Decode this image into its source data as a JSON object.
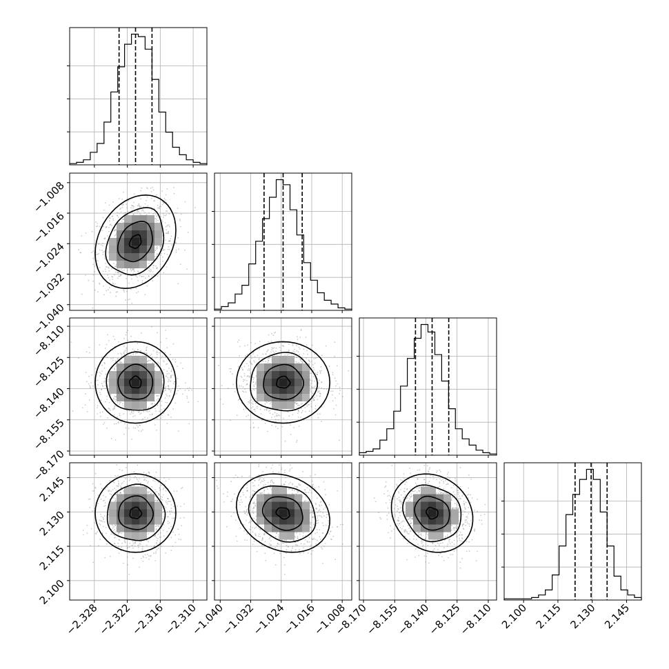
{
  "chart_data": {
    "type": "corner",
    "grid": true,
    "parameters": [
      {
        "mean": -2.3205,
        "sigma": 0.003,
        "range": [
          -2.3325,
          -2.3075
        ],
        "ticks": [
          -2.328,
          -2.322,
          -2.316,
          -2.31
        ],
        "tick_labels": [
          "−2.328",
          "−2.322",
          "−2.316",
          "−2.310"
        ],
        "quantiles": [
          -2.3235,
          -2.3205,
          -2.3175
        ]
      },
      {
        "mean": -1.0235,
        "sigma": 0.005,
        "range": [
          -1.0415,
          -1.0055
        ],
        "ticks": [
          -1.04,
          -1.032,
          -1.024,
          -1.016,
          -1.008
        ],
        "tick_labels": [
          "−1.040",
          "−1.032",
          "−1.024",
          "−1.016",
          "−1.008"
        ],
        "quantiles": [
          -1.0285,
          -1.0235,
          -1.0185
        ]
      },
      {
        "mean": -8.137,
        "sigma": 0.008,
        "range": [
          -8.172,
          -8.106
        ],
        "ticks": [
          -8.17,
          -8.155,
          -8.14,
          -8.125,
          -8.11
        ],
        "tick_labels": [
          "−8.170",
          "−8.155",
          "−8.140",
          "−8.125",
          "−8.110"
        ],
        "quantiles": [
          -8.145,
          -8.137,
          -8.129
        ]
      },
      {
        "mean": 2.1295,
        "sigma": 0.007,
        "range": [
          2.0915,
          2.1515
        ],
        "ticks": [
          2.1,
          2.115,
          2.13,
          2.145
        ],
        "tick_labels": [
          "2.100",
          "2.115",
          "2.130",
          "2.145"
        ],
        "quantiles": [
          2.1225,
          2.1295,
          2.1365
        ]
      }
    ],
    "histograms": [
      [
        1,
        2,
        4,
        10,
        17,
        34,
        58,
        78,
        96,
        104,
        102,
        92,
        68,
        42,
        26,
        14,
        8,
        4,
        2,
        1
      ],
      [
        1,
        3,
        6,
        13,
        20,
        37,
        55,
        73,
        90,
        104,
        100,
        80,
        60,
        38,
        24,
        14,
        8,
        5,
        2,
        1
      ],
      [
        2,
        3,
        5,
        12,
        21,
        35,
        55,
        77,
        93,
        104,
        98,
        80,
        59,
        37,
        21,
        13,
        8,
        4,
        2,
        1
      ],
      [
        1,
        1,
        1,
        1,
        2,
        4,
        8,
        20,
        43,
        68,
        84,
        96,
        104,
        96,
        70,
        43,
        19,
        8,
        4,
        2
      ]
    ],
    "correlations": [
      [
        1,
        0.25,
        0,
        0
      ],
      [
        0.25,
        1,
        0,
        -0.2
      ],
      [
        0,
        0,
        1,
        -0.15
      ],
      [
        0,
        -0.2,
        -0.15,
        1
      ]
    ]
  }
}
